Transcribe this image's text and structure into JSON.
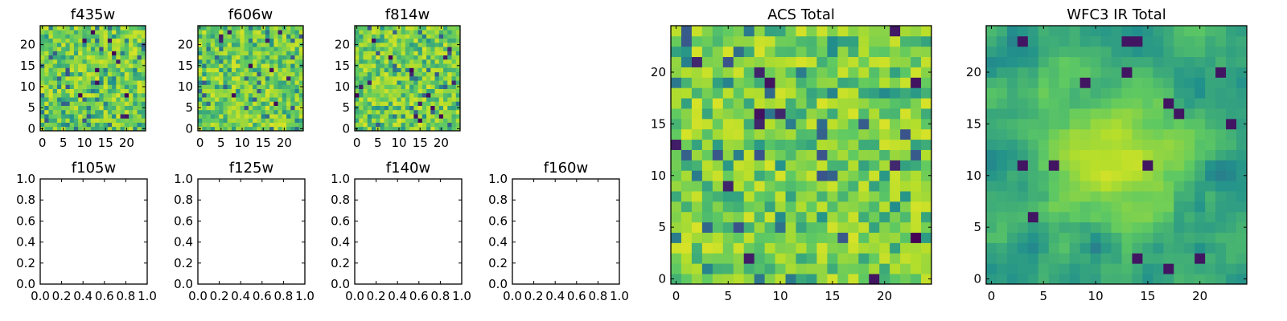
{
  "colormap": {
    "name": "viridis",
    "stops": [
      "#440154",
      "#3b528b",
      "#21918c",
      "#5ec962",
      "#b5de2b",
      "#fde725"
    ]
  },
  "chart_data": [
    {
      "type": "heatmap",
      "title": "f435w",
      "xlim": [
        -0.5,
        24.5
      ],
      "ylim": [
        -0.5,
        24.5
      ],
      "xticks": [
        0,
        5,
        10,
        15,
        20
      ],
      "yticks": [
        0,
        5,
        10,
        15,
        20
      ],
      "grid_size": 25,
      "value_range": [
        0,
        1
      ],
      "seed": 435,
      "empty": false
    },
    {
      "type": "heatmap",
      "title": "f606w",
      "xlim": [
        -0.5,
        24.5
      ],
      "ylim": [
        -0.5,
        24.5
      ],
      "xticks": [
        0,
        5,
        10,
        15,
        20
      ],
      "yticks": [
        0,
        5,
        10,
        15,
        20
      ],
      "grid_size": 25,
      "value_range": [
        0,
        1
      ],
      "seed": 606,
      "empty": false
    },
    {
      "type": "heatmap",
      "title": "f814w",
      "xlim": [
        -0.5,
        24.5
      ],
      "ylim": [
        -0.5,
        24.5
      ],
      "xticks": [
        0,
        5,
        10,
        15,
        20
      ],
      "yticks": [
        0,
        5,
        10,
        15,
        20
      ],
      "grid_size": 25,
      "value_range": [
        0,
        1
      ],
      "seed": 814,
      "empty": false
    },
    {
      "type": "heatmap",
      "title": "f105w",
      "xlim": [
        0.0,
        1.0
      ],
      "ylim": [
        0.0,
        1.0
      ],
      "xticks": [
        "0.0",
        "0.2",
        "0.4",
        "0.6",
        "0.8",
        "1.0"
      ],
      "yticks": [
        "0.0",
        "0.2",
        "0.4",
        "0.6",
        "0.8",
        "1.0"
      ],
      "empty": true
    },
    {
      "type": "heatmap",
      "title": "f125w",
      "xlim": [
        0.0,
        1.0
      ],
      "ylim": [
        0.0,
        1.0
      ],
      "xticks": [
        "0.0",
        "0.2",
        "0.4",
        "0.6",
        "0.8",
        "1.0"
      ],
      "yticks": [
        "0.0",
        "0.2",
        "0.4",
        "0.6",
        "0.8",
        "1.0"
      ],
      "empty": true
    },
    {
      "type": "heatmap",
      "title": "f140w",
      "xlim": [
        0.0,
        1.0
      ],
      "ylim": [
        0.0,
        1.0
      ],
      "xticks": [
        "0.0",
        "0.2",
        "0.4",
        "0.6",
        "0.8",
        "1.0"
      ],
      "yticks": [
        "0.0",
        "0.2",
        "0.4",
        "0.6",
        "0.8",
        "1.0"
      ],
      "empty": true
    },
    {
      "type": "heatmap",
      "title": "f160w",
      "xlim": [
        0.0,
        1.0
      ],
      "ylim": [
        0.0,
        1.0
      ],
      "xticks": [
        "0.0",
        "0.2",
        "0.4",
        "0.6",
        "0.8",
        "1.0"
      ],
      "yticks": [
        "0.0",
        "0.2",
        "0.4",
        "0.6",
        "0.8",
        "1.0"
      ],
      "empty": true
    },
    {
      "type": "heatmap",
      "title": "ACS Total",
      "xlim": [
        -0.5,
        24.5
      ],
      "ylim": [
        -0.5,
        24.5
      ],
      "xticks": [
        0,
        5,
        10,
        15,
        20
      ],
      "yticks": [
        0,
        5,
        10,
        15,
        20
      ],
      "grid_size": 25,
      "value_range": [
        0,
        1
      ],
      "seed": 1001,
      "empty": false
    },
    {
      "type": "heatmap",
      "title": "WFC3 IR Total",
      "xlim": [
        -0.5,
        24.5
      ],
      "ylim": [
        -0.5,
        24.5
      ],
      "xticks": [
        0,
        5,
        10,
        15,
        20
      ],
      "yticks": [
        0,
        5,
        10,
        15,
        20
      ],
      "grid_size": 25,
      "value_range": [
        0,
        1
      ],
      "seed": 2002,
      "smooth": true,
      "bright_center": [
        12,
        12
      ],
      "empty": false
    }
  ]
}
